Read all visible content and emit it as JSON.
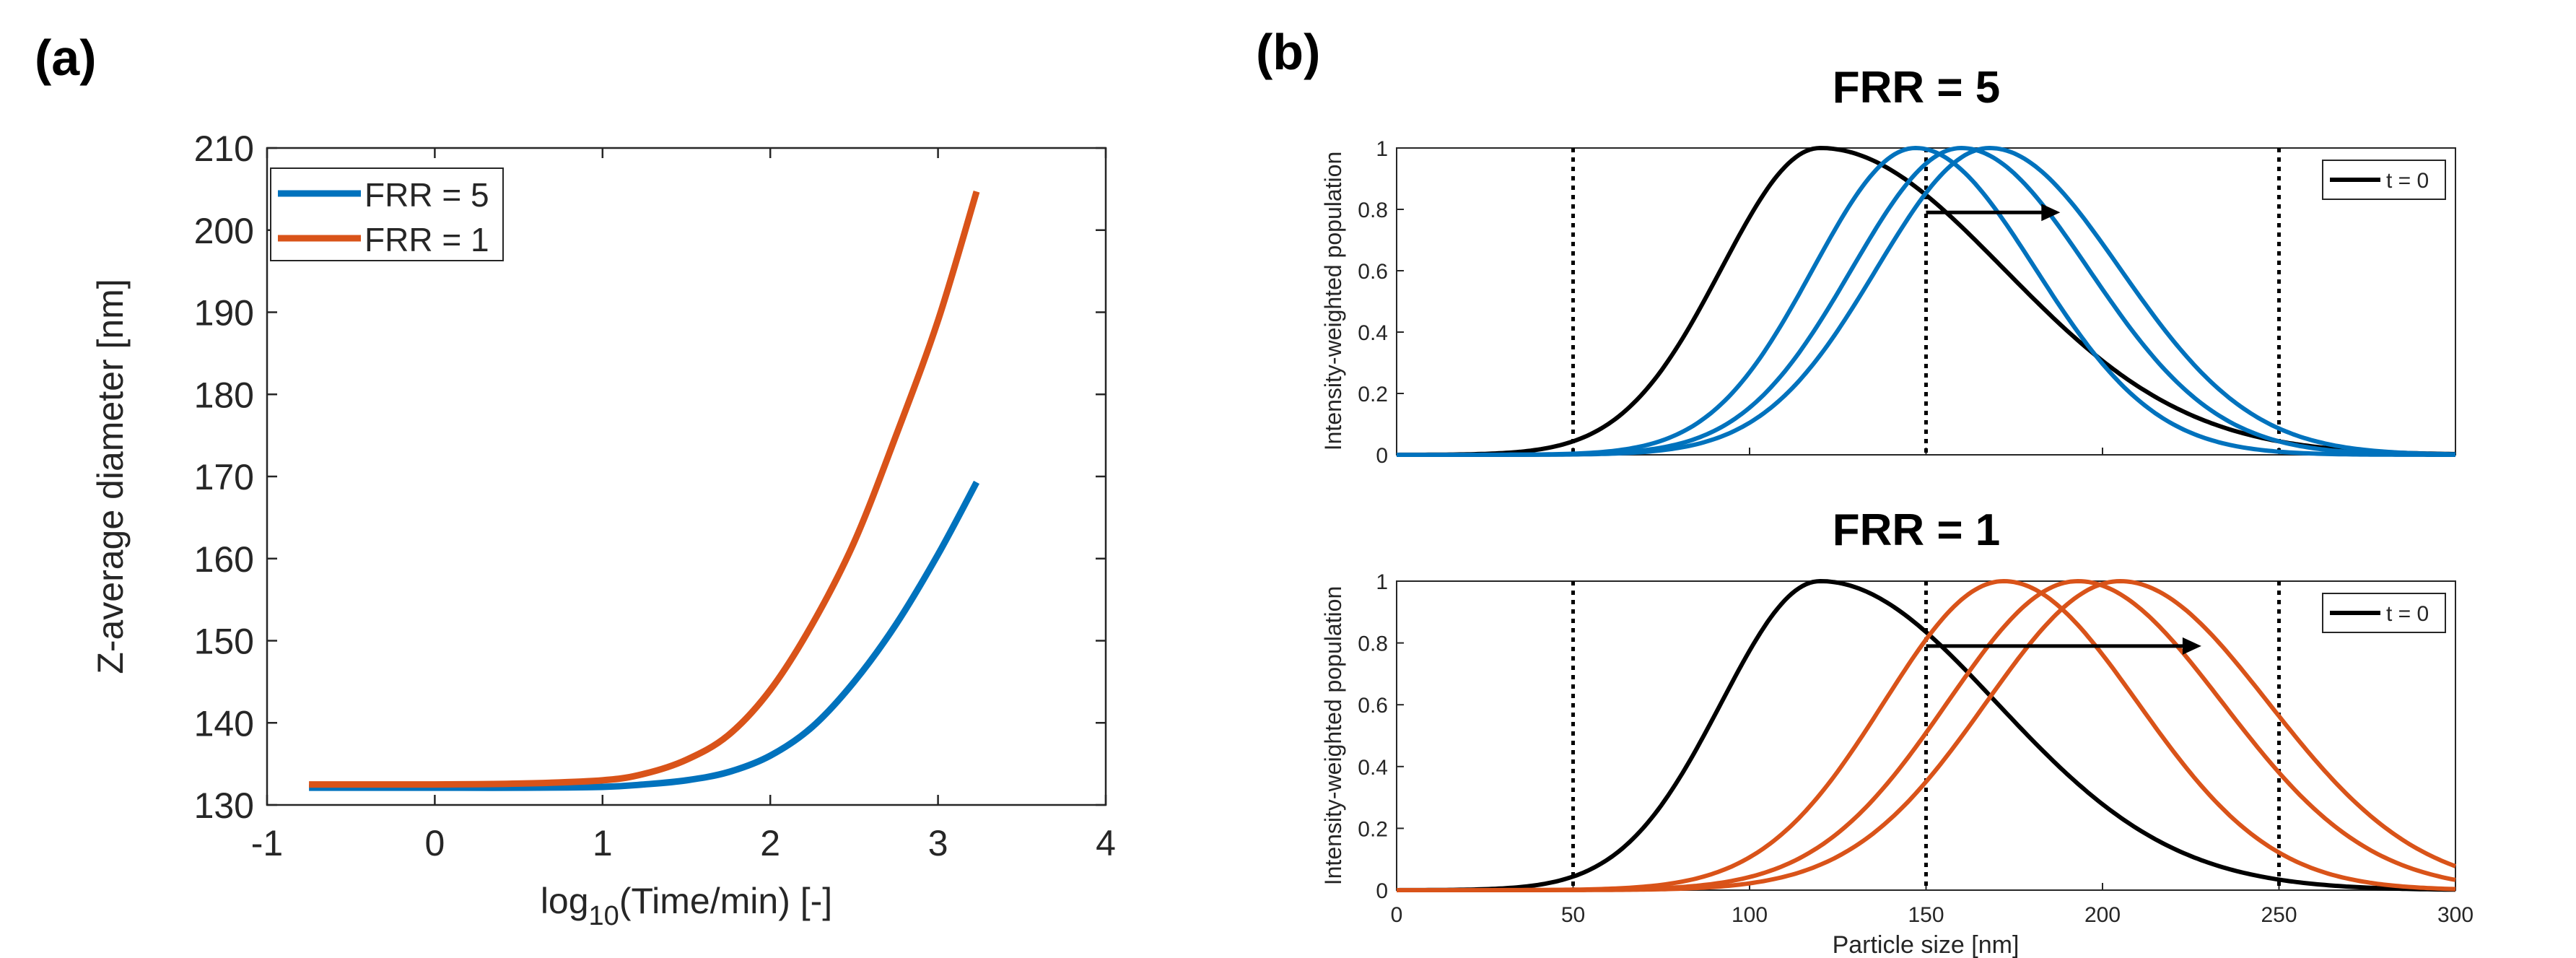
{
  "colors": {
    "blue": "#0072BD",
    "orange": "#D95319",
    "black": "#000000"
  },
  "chart_data": [
    {
      "id": "a",
      "panel_label": "(a)",
      "type": "line",
      "title": "",
      "xlabel_main": "log",
      "xlabel_sub": "10",
      "xlabel_rest": "(Time/min) [-]",
      "ylabel": "Z-average diameter [nm]",
      "xlim": [
        -1,
        4
      ],
      "ylim": [
        130,
        210
      ],
      "xticks": [
        -1,
        0,
        1,
        2,
        3,
        4
      ],
      "yticks": [
        130,
        140,
        150,
        160,
        170,
        180,
        190,
        200,
        210
      ],
      "legend": "top-left",
      "series": [
        {
          "name": "FRR = 5",
          "color": "#0072BD",
          "x": [
            -0.75,
            0,
            0.5,
            1.0,
            1.25,
            1.5,
            1.75,
            2.0,
            2.25,
            2.5,
            2.75,
            3.0,
            3.23
          ],
          "y": [
            132.1,
            132.1,
            132.1,
            132.2,
            132.5,
            133.0,
            134.0,
            136.0,
            139.5,
            145.0,
            152.0,
            160.5,
            169.3
          ]
        },
        {
          "name": "FRR = 1",
          "color": "#D95319",
          "x": [
            -0.75,
            0,
            0.5,
            1.0,
            1.25,
            1.5,
            1.75,
            2.0,
            2.25,
            2.5,
            2.75,
            3.0,
            3.23
          ],
          "y": [
            132.5,
            132.5,
            132.6,
            133.0,
            133.8,
            135.5,
            138.5,
            144.0,
            152.0,
            162.0,
            175.0,
            189.0,
            204.7
          ]
        }
      ]
    },
    {
      "id": "b1",
      "panel_label": "(b)",
      "type": "line",
      "title": "FRR = 5",
      "xlabel": "",
      "ylabel": "Intensity-weighted population",
      "xlim": [
        0,
        300
      ],
      "ylim": [
        0,
        1
      ],
      "xticks": [
        0,
        50,
        100,
        150,
        200,
        250,
        300
      ],
      "show_xticklabels": false,
      "yticks": [
        0,
        0.2,
        0.4,
        0.6,
        0.8,
        1
      ],
      "ytick_labels": [
        "0",
        "0.2",
        "0.4",
        "0.6",
        "0.8",
        "1"
      ],
      "vlines": [
        50,
        150,
        250
      ],
      "legend": "top-right",
      "legend_label": "t = 0",
      "arrow": {
        "x_from": 150,
        "x_to": 188,
        "y": 0.79
      },
      "t0": {
        "color": "#000000",
        "peak": 120,
        "sigma_left": 28,
        "sigma_right": 52
      },
      "curves": [
        {
          "color": "#0072BD",
          "peak": 147,
          "sigma_left": 29,
          "sigma_right": 34
        },
        {
          "color": "#0072BD",
          "peak": 160,
          "sigma_left": 31,
          "sigma_right": 36
        },
        {
          "color": "#0072BD",
          "peak": 168,
          "sigma_left": 32,
          "sigma_right": 37
        }
      ]
    },
    {
      "id": "b2",
      "type": "line",
      "title": "FRR = 1",
      "xlabel": "Particle size [nm]",
      "ylabel": "Intensity-weighted population",
      "xlim": [
        0,
        300
      ],
      "ylim": [
        0,
        1
      ],
      "xticks": [
        0,
        50,
        100,
        150,
        200,
        250,
        300
      ],
      "show_xticklabels": true,
      "yticks": [
        0,
        0.2,
        0.4,
        0.6,
        0.8,
        1
      ],
      "ytick_labels": [
        "0",
        "0.2",
        "0.4",
        "0.6",
        "0.8",
        "1"
      ],
      "vlines": [
        50,
        150,
        250
      ],
      "legend": "top-right",
      "legend_label": "t = 0",
      "arrow": {
        "x_from": 150,
        "x_to": 228,
        "y": 0.79
      },
      "t0": {
        "color": "#000000",
        "peak": 120,
        "sigma_left": 28,
        "sigma_right": 50
      },
      "curves": [
        {
          "color": "#D95319",
          "peak": 172,
          "sigma_left": 34,
          "sigma_right": 38
        },
        {
          "color": "#D95319",
          "peak": 193,
          "sigma_left": 37,
          "sigma_right": 41
        },
        {
          "color": "#D95319",
          "peak": 205,
          "sigma_left": 38,
          "sigma_right": 42
        }
      ]
    }
  ]
}
